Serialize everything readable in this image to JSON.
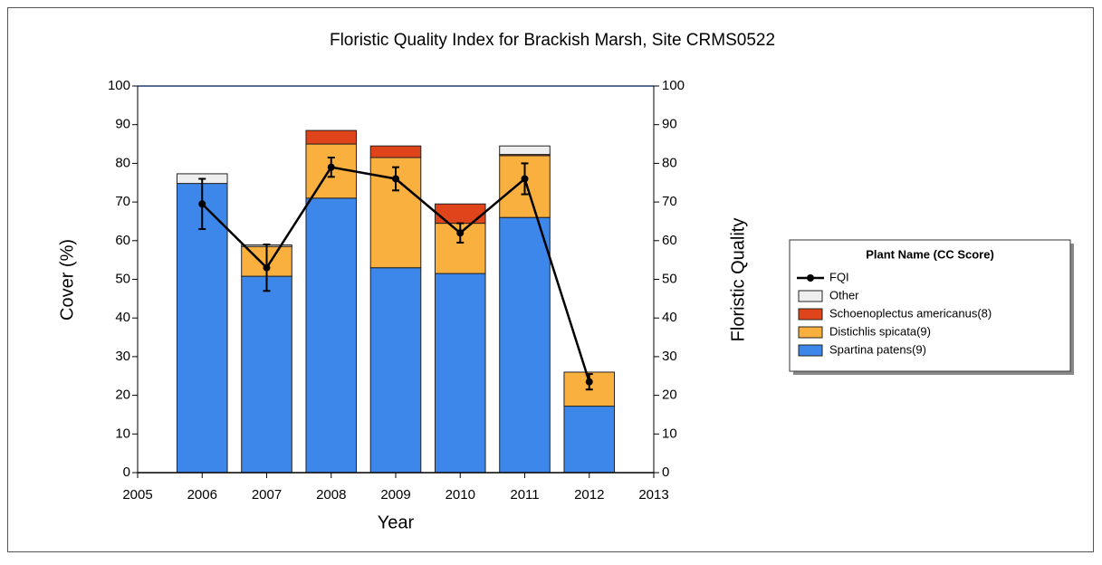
{
  "chart_data": {
    "type": "bar",
    "stacked": true,
    "title": "Floristic Quality Index for Brackish Marsh, Site CRMS0522",
    "x_label": "Year",
    "y_label": "Cover (%)",
    "y2_label": "Floristic Quality",
    "legend_title": "Plant Name (CC Score)",
    "legend": "right",
    "x": [
      2006,
      2007,
      2008,
      2009,
      2010,
      2011,
      2012
    ],
    "xlim": [
      2005,
      2013
    ],
    "xticks": [
      2005,
      2006,
      2007,
      2008,
      2009,
      2010,
      2011,
      2012,
      2013
    ],
    "ylim": [
      0,
      100
    ],
    "yticks": [
      0,
      10,
      20,
      30,
      40,
      50,
      60,
      70,
      80,
      90,
      100
    ],
    "y2lim": [
      0,
      100
    ],
    "y2ticks": [
      0,
      10,
      20,
      30,
      40,
      50,
      60,
      70,
      80,
      90,
      100
    ],
    "series": [
      {
        "name": "Spartina patens(9)",
        "color": "#3d87ea",
        "values": [
          74.8,
          50.8,
          71,
          53,
          51.5,
          66,
          17.2
        ]
      },
      {
        "name": "Distichlis spicata(9)",
        "color": "#f9b03f",
        "values": [
          0,
          7.7,
          14,
          28.5,
          13,
          16,
          8.8
        ]
      },
      {
        "name": "Schoenoplectus americanus(8)",
        "color": "#e0441a",
        "values": [
          0,
          0,
          3.5,
          3,
          5,
          0.3,
          0
        ]
      },
      {
        "name": "Other",
        "color": "#eeeeee",
        "values": [
          2.5,
          0.4,
          0,
          0,
          0,
          2.2,
          0
        ]
      },
      {
        "name": "FQI",
        "type": "line",
        "axis": "y2",
        "color": "#000000",
        "values": [
          69.5,
          53,
          79,
          76,
          62,
          76,
          23.5
        ],
        "errors": [
          6.5,
          6,
          2.5,
          3,
          2.5,
          4,
          2
        ]
      }
    ]
  }
}
